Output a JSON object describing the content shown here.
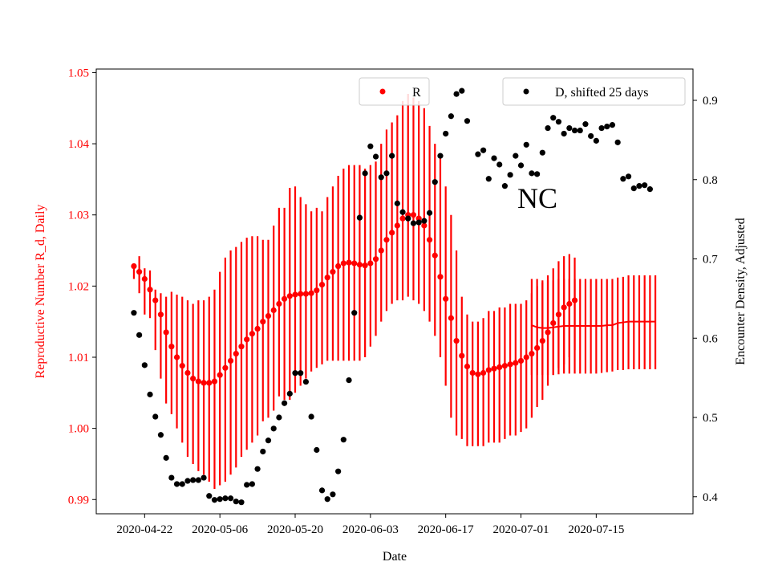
{
  "chart_data": {
    "type": "scatter",
    "title": "",
    "annotation": "NC",
    "xlabel": "Date",
    "ylabel_left": "Reproductive Number R_d, Daily",
    "ylabel_right": "Encounter Density, Adjusted",
    "x_tick_labels": [
      "2020-04-22",
      "2020-05-06",
      "2020-05-20",
      "2020-06-03",
      "2020-06-17",
      "2020-07-01",
      "2020-07-15"
    ],
    "x_range": [
      "2020-04-13",
      "2020-08-02"
    ],
    "left_axis": {
      "ylim": [
        0.988,
        1.0505
      ],
      "ticks": [
        "0.99",
        "1.00",
        "1.01",
        "1.02",
        "1.03",
        "1.04",
        "1.05"
      ],
      "color": "#ff0000"
    },
    "right_axis": {
      "ylim": [
        0.3785,
        0.9395
      ],
      "ticks": [
        "0.4",
        "0.5",
        "0.6",
        "0.7",
        "0.8",
        "0.9"
      ],
      "color": "#000000"
    },
    "legend": {
      "left_entry": "R",
      "right_entry": "D, shifted 25 days",
      "placement": "top"
    },
    "series": [
      {
        "name": "R",
        "axis": "left",
        "color": "#ff0000",
        "start_date": "2020-04-20",
        "values": [
          1.0228,
          1.022,
          1.021,
          1.0195,
          1.018,
          1.016,
          1.0135,
          1.0115,
          1.01,
          1.0088,
          1.0078,
          1.007,
          1.0066,
          1.0064,
          1.0064,
          1.0066,
          1.0075,
          1.0085,
          1.0095,
          1.0105,
          1.0115,
          1.0125,
          1.0133,
          1.014,
          1.015,
          1.0158,
          1.0166,
          1.0175,
          1.0182,
          1.0186,
          1.0188,
          1.0189,
          1.0189,
          1.019,
          1.0194,
          1.0202,
          1.0212,
          1.022,
          1.0228,
          1.0232,
          1.0233,
          1.0232,
          1.023,
          1.0229,
          1.0232,
          1.0238,
          1.025,
          1.0265,
          1.0275,
          1.0285,
          1.0295,
          1.03,
          1.03,
          1.0295,
          1.0285,
          1.0265,
          1.0243,
          1.0213,
          1.0182,
          1.0155,
          1.0123,
          1.0102,
          1.0087,
          1.0078,
          1.0076,
          1.0078,
          1.0082,
          1.0084,
          1.0086,
          1.0088,
          1.009,
          1.0092,
          1.0095,
          1.01,
          1.0105,
          1.0113,
          1.0123,
          1.0135,
          1.0148,
          1.016,
          1.017,
          1.0175,
          1.018
        ],
        "error_low": [
          1.021,
          1.019,
          1.016,
          1.0155,
          1.011,
          1.007,
          1.0035,
          1.002,
          1.0,
          0.998,
          0.996,
          0.995,
          0.994,
          0.9935,
          0.9925,
          0.9915,
          0.992,
          0.9925,
          0.9935,
          0.9945,
          0.996,
          0.997,
          0.998,
          0.999,
          1.001,
          1.0015,
          1.0025,
          1.0045,
          1.004,
          1.004,
          1.005,
          1.006,
          1.007,
          1.008,
          1.0085,
          1.009,
          1.0095,
          1.0095,
          1.0095,
          1.0095,
          1.0095,
          1.0095,
          1.0095,
          1.01,
          1.0115,
          1.013,
          1.015,
          1.0165,
          1.0175,
          1.018,
          1.018,
          1.0185,
          1.018,
          1.0175,
          1.0165,
          1.015,
          1.013,
          1.01,
          1.006,
          1.0015,
          0.999,
          0.9985,
          0.9975,
          0.9975,
          0.9975,
          0.9975,
          0.998,
          0.998,
          0.998,
          0.9985,
          0.999,
          0.999,
          0.9995,
          1.0,
          1.0015,
          1.003,
          1.004,
          1.006,
          1.0075,
          1.0085,
          1.009,
          1.01,
          1.011
        ],
        "error_high": [
          1.0228,
          1.0242,
          1.0225,
          1.0222,
          1.0195,
          1.019,
          1.0185,
          1.0192,
          1.0188,
          1.0185,
          1.018,
          1.0175,
          1.018,
          1.018,
          1.0185,
          1.0195,
          1.022,
          1.024,
          1.025,
          1.0255,
          1.0262,
          1.0268,
          1.027,
          1.027,
          1.0265,
          1.0265,
          1.0285,
          1.031,
          1.031,
          1.0338,
          1.034,
          1.0325,
          1.0315,
          1.0305,
          1.031,
          1.0305,
          1.0325,
          1.034,
          1.0355,
          1.0365,
          1.037,
          1.037,
          1.037,
          1.0365,
          1.037,
          1.0375,
          1.04,
          1.042,
          1.043,
          1.044,
          1.046,
          1.047,
          1.0465,
          1.046,
          1.045,
          1.0425,
          1.04,
          1.038,
          1.034,
          1.03,
          1.025,
          1.0185,
          1.016,
          1.015,
          1.015,
          1.0155,
          1.0165,
          1.0165,
          1.017,
          1.017,
          1.0175,
          1.0175,
          1.0175,
          1.018,
          1.019,
          1.02,
          1.0205,
          1.0215,
          1.0225,
          1.0235,
          1.0242,
          1.0245,
          1.024
        ]
      },
      {
        "name": "R",
        "axis": "left",
        "color": "#ff0000",
        "start_date": "2020-07-03",
        "values": [
          1.0145,
          1.0142,
          1.0141,
          1.0141,
          1.0142,
          1.0143,
          1.0144,
          1.0144,
          1.0144,
          1.0144,
          1.0144,
          1.0144,
          1.0144,
          1.0144,
          1.0145,
          1.0145,
          1.0148,
          1.0149,
          1.015,
          1.015,
          1.015,
          1.015,
          1.015,
          1.015
        ],
        "error_low": [
          1.0075,
          1.0075,
          1.0075,
          1.0075,
          1.0075,
          1.0076,
          1.0077,
          1.0077,
          1.0077,
          1.0077,
          1.0077,
          1.0077,
          1.0077,
          1.0078,
          1.0079,
          1.008,
          1.0082,
          1.0082,
          1.0083,
          1.0083,
          1.0083,
          1.0083,
          1.0083,
          1.0083
        ],
        "error_high": [
          1.021,
          1.021,
          1.0208,
          1.0208,
          1.0208,
          1.021,
          1.021,
          1.021,
          1.021,
          1.021,
          1.021,
          1.021,
          1.021,
          1.021,
          1.021,
          1.021,
          1.0212,
          1.0213,
          1.0215,
          1.0215,
          1.0215,
          1.0215,
          1.0215,
          1.0215
        ]
      },
      {
        "name": "D, shifted 25 days",
        "axis": "right",
        "color": "#000000",
        "start_date": "2020-04-20",
        "values": [
          0.632,
          0.604,
          0.566,
          0.529,
          0.501,
          0.478,
          0.449,
          0.424,
          0.416,
          0.416,
          0.42,
          0.421,
          0.421,
          0.424,
          0.401,
          0.396,
          0.397,
          0.398,
          0.398,
          0.394,
          0.393,
          0.415,
          0.416,
          0.435,
          0.457,
          0.471,
          0.486,
          0.5,
          0.518,
          0.53,
          0.556,
          0.556,
          0.545,
          0.501,
          0.459,
          0.408,
          0.397,
          0.403,
          0.432,
          0.472,
          0.547,
          0.632,
          0.752,
          0.808,
          0.842,
          0.829,
          0.803,
          0.808,
          0.83,
          0.77,
          0.759,
          0.751,
          0.745,
          0.746,
          0.748,
          0.758,
          0.797,
          0.83,
          0.858,
          0.88,
          0.908,
          0.912,
          0.874,
          null,
          0.832,
          0.837,
          0.801,
          0.827,
          0.819,
          0.792,
          0.806,
          0.83,
          0.818,
          0.844,
          0.808,
          0.807,
          0.834,
          0.865,
          0.878,
          0.873,
          0.858,
          0.865,
          0.862,
          0.862,
          0.87,
          0.855,
          0.849,
          0.865,
          0.867,
          0.869,
          0.847,
          0.801,
          0.804,
          0.789,
          0.792,
          0.793,
          0.788
        ]
      }
    ]
  }
}
